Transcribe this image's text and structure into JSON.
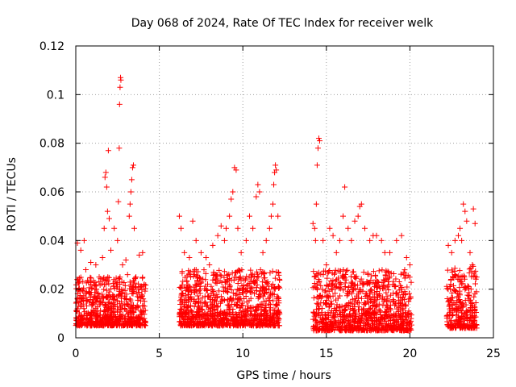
{
  "chart_data": {
    "type": "scatter",
    "title": "Day 068 of 2024, Rate Of TEC Index for receiver welk",
    "xlabel": "GPS time / hours",
    "ylabel": "ROTI / TECUs",
    "xlim": [
      0,
      25
    ],
    "ylim": [
      0,
      0.12
    ],
    "xticks": [
      0,
      5,
      10,
      15,
      20,
      25
    ],
    "xtick_labels": [
      "0",
      "5",
      "10",
      "15",
      "20",
      "25"
    ],
    "yticks": [
      0,
      0.02,
      0.04,
      0.06,
      0.08,
      0.1,
      0.12
    ],
    "ytick_labels": [
      "0",
      "0.02",
      "0.04",
      "0.06",
      "0.08",
      "0.1",
      "0.12"
    ],
    "grid": true,
    "marker": "+",
    "color": "#ff0000",
    "series": [
      {
        "name": "ROTI",
        "points": [
          [
            0.1,
            0.039
          ],
          [
            0.3,
            0.036
          ],
          [
            0.5,
            0.04
          ],
          [
            0.6,
            0.028
          ],
          [
            0.9,
            0.031
          ],
          [
            1.2,
            0.03
          ],
          [
            1.4,
            0.025
          ],
          [
            1.6,
            0.033
          ],
          [
            1.7,
            0.045
          ],
          [
            1.75,
            0.066
          ],
          [
            1.8,
            0.068
          ],
          [
            1.85,
            0.062
          ],
          [
            1.9,
            0.052
          ],
          [
            1.95,
            0.077
          ],
          [
            2.0,
            0.049
          ],
          [
            2.1,
            0.036
          ],
          [
            2.3,
            0.045
          ],
          [
            2.5,
            0.04
          ],
          [
            2.55,
            0.056
          ],
          [
            2.6,
            0.078
          ],
          [
            2.62,
            0.096
          ],
          [
            2.65,
            0.103
          ],
          [
            2.68,
            0.107
          ],
          [
            2.7,
            0.106
          ],
          [
            2.8,
            0.03
          ],
          [
            3.0,
            0.032
          ],
          [
            3.1,
            0.026
          ],
          [
            3.2,
            0.05
          ],
          [
            3.25,
            0.055
          ],
          [
            3.3,
            0.06
          ],
          [
            3.35,
            0.065
          ],
          [
            3.4,
            0.07
          ],
          [
            3.45,
            0.071
          ],
          [
            3.5,
            0.045
          ],
          [
            3.6,
            0.025
          ],
          [
            3.8,
            0.034
          ],
          [
            4.0,
            0.035
          ],
          [
            4.1,
            0.022
          ],
          [
            6.2,
            0.05
          ],
          [
            6.3,
            0.045
          ],
          [
            6.5,
            0.035
          ],
          [
            6.8,
            0.033
          ],
          [
            7.0,
            0.048
          ],
          [
            7.2,
            0.04
          ],
          [
            7.5,
            0.035
          ],
          [
            7.8,
            0.033
          ],
          [
            8.0,
            0.03
          ],
          [
            8.2,
            0.038
          ],
          [
            8.5,
            0.042
          ],
          [
            8.7,
            0.046
          ],
          [
            8.9,
            0.04
          ],
          [
            9.0,
            0.045
          ],
          [
            9.2,
            0.05
          ],
          [
            9.3,
            0.057
          ],
          [
            9.4,
            0.06
          ],
          [
            9.5,
            0.07
          ],
          [
            9.6,
            0.069
          ],
          [
            9.7,
            0.045
          ],
          [
            9.9,
            0.035
          ],
          [
            10.2,
            0.04
          ],
          [
            10.4,
            0.05
          ],
          [
            10.6,
            0.045
          ],
          [
            10.8,
            0.058
          ],
          [
            10.9,
            0.063
          ],
          [
            11.0,
            0.06
          ],
          [
            11.2,
            0.035
          ],
          [
            11.4,
            0.04
          ],
          [
            11.6,
            0.045
          ],
          [
            11.7,
            0.05
          ],
          [
            11.8,
            0.055
          ],
          [
            11.85,
            0.063
          ],
          [
            11.9,
            0.068
          ],
          [
            11.95,
            0.071
          ],
          [
            12.0,
            0.069
          ],
          [
            12.1,
            0.05
          ],
          [
            14.2,
            0.047
          ],
          [
            14.3,
            0.045
          ],
          [
            14.35,
            0.04
          ],
          [
            14.4,
            0.055
          ],
          [
            14.45,
            0.071
          ],
          [
            14.5,
            0.078
          ],
          [
            14.55,
            0.082
          ],
          [
            14.6,
            0.081
          ],
          [
            14.8,
            0.04
          ],
          [
            15.0,
            0.03
          ],
          [
            15.2,
            0.045
          ],
          [
            15.4,
            0.042
          ],
          [
            15.6,
            0.035
          ],
          [
            15.8,
            0.04
          ],
          [
            16.0,
            0.05
          ],
          [
            16.1,
            0.062
          ],
          [
            16.3,
            0.045
          ],
          [
            16.5,
            0.04
          ],
          [
            16.7,
            0.048
          ],
          [
            16.9,
            0.05
          ],
          [
            17.0,
            0.054
          ],
          [
            17.1,
            0.055
          ],
          [
            17.3,
            0.045
          ],
          [
            17.6,
            0.04
          ],
          [
            17.8,
            0.042
          ],
          [
            18.0,
            0.042
          ],
          [
            18.3,
            0.04
          ],
          [
            18.5,
            0.035
          ],
          [
            18.8,
            0.035
          ],
          [
            19.2,
            0.04
          ],
          [
            19.5,
            0.042
          ],
          [
            19.8,
            0.033
          ],
          [
            20.0,
            0.03
          ],
          [
            22.3,
            0.038
          ],
          [
            22.5,
            0.035
          ],
          [
            22.7,
            0.04
          ],
          [
            22.9,
            0.042
          ],
          [
            23.0,
            0.045
          ],
          [
            23.1,
            0.04
          ],
          [
            23.2,
            0.055
          ],
          [
            23.3,
            0.052
          ],
          [
            23.4,
            0.048
          ],
          [
            23.6,
            0.035
          ],
          [
            23.8,
            0.053
          ],
          [
            23.9,
            0.047
          ],
          [
            24.0,
            0.025
          ]
        ]
      }
    ],
    "dense_bands": [
      {
        "x_range": [
          0.0,
          4.2
        ],
        "y_range": [
          0.005,
          0.025
        ]
      },
      {
        "x_range": [
          6.2,
          12.2
        ],
        "y_range": [
          0.005,
          0.028
        ]
      },
      {
        "x_range": [
          14.2,
          20.1
        ],
        "y_range": [
          0.003,
          0.028
        ]
      },
      {
        "x_range": [
          22.2,
          24.0
        ],
        "y_range": [
          0.004,
          0.03
        ]
      }
    ]
  }
}
